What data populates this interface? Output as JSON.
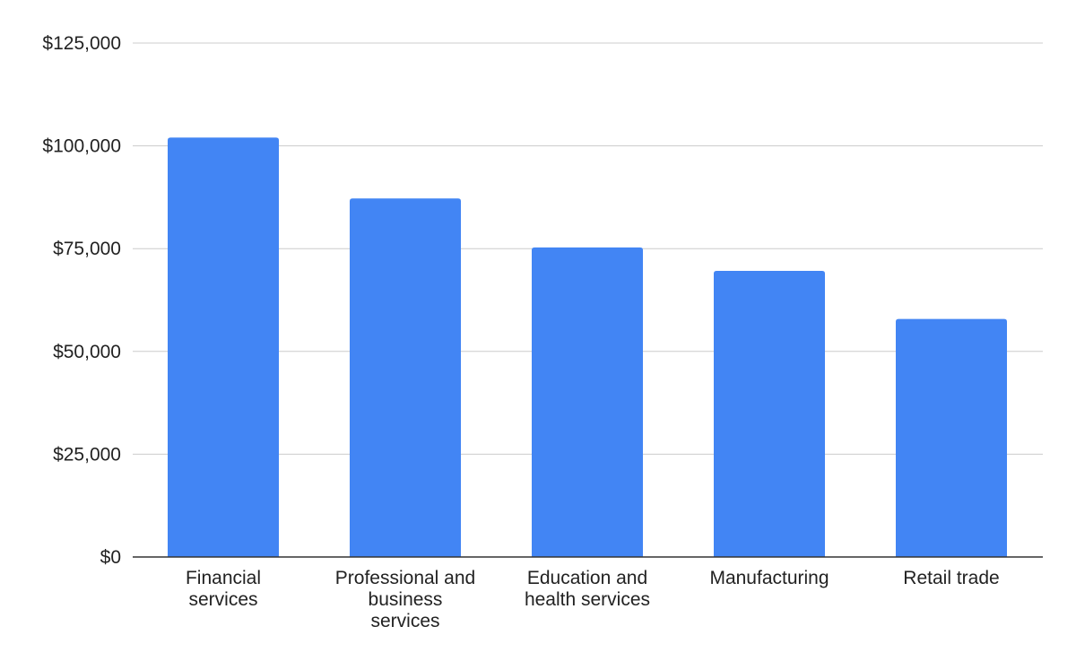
{
  "chart_data": {
    "type": "bar",
    "categories": [
      [
        "Financial",
        "services"
      ],
      [
        "Professional and",
        "business",
        "services"
      ],
      [
        "Education and",
        "health services"
      ],
      [
        "Manufacturing"
      ],
      [
        "Retail trade"
      ]
    ],
    "values": [
      102000,
      87200,
      75300,
      69600,
      57900
    ],
    "y_ticks": [
      "$0",
      "$25,000",
      "$50,000",
      "$75,000",
      "$100,000",
      "$125,000"
    ],
    "ylim": [
      0,
      125000
    ],
    "grid": true,
    "legend": "none",
    "colors": {
      "bar": "#4285f4",
      "grid": "#cccccc",
      "axis": "#333333"
    }
  }
}
